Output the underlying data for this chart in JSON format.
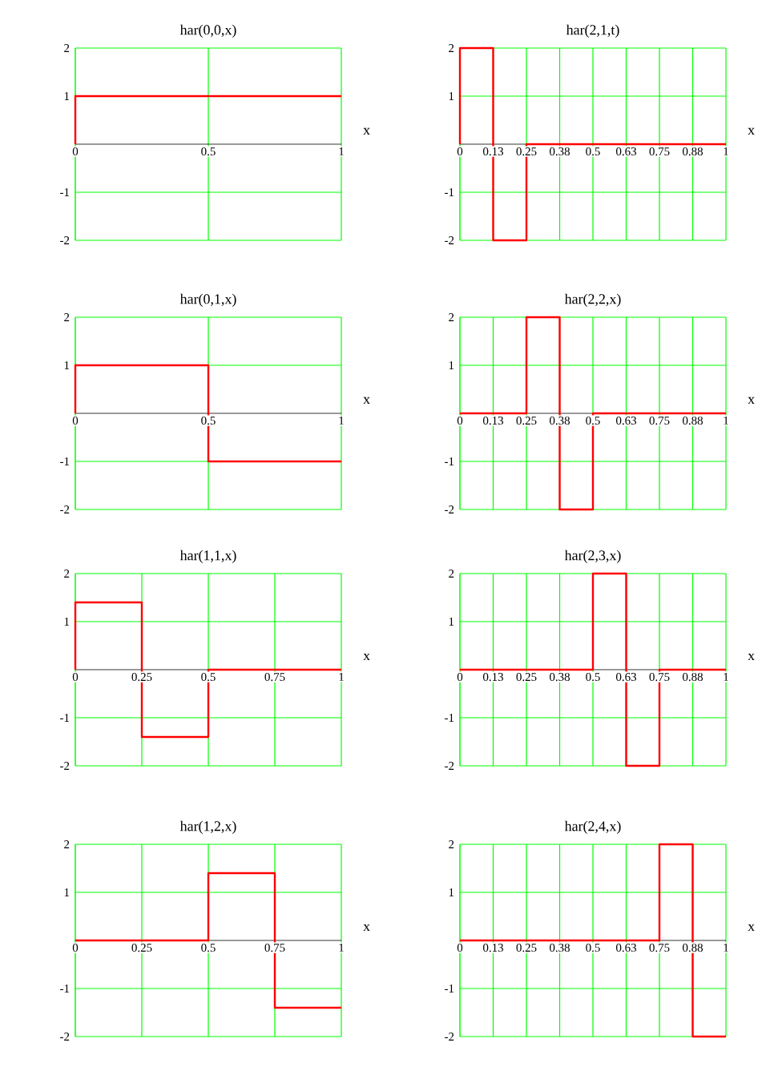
{
  "chart_data": [
    {
      "type": "step",
      "title": "har(0,0,x)",
      "xlabel": "x",
      "x": [
        0,
        0,
        1
      ],
      "values": [
        0,
        1,
        1
      ],
      "color": "#ff0000",
      "xlim": [
        0,
        1
      ],
      "ylim": [
        -2,
        2
      ],
      "xticks": [
        0,
        0.5,
        1
      ],
      "yticks": [
        -2,
        -1,
        1,
        2
      ],
      "grid": true
    },
    {
      "type": "step",
      "title": "har(2,1,t)",
      "xlabel": "x",
      "x": [
        0,
        0,
        0.125,
        0.25,
        1
      ],
      "values": [
        0,
        2,
        -2,
        0,
        0
      ],
      "color": "#ff0000",
      "xlim": [
        0,
        1
      ],
      "ylim": [
        -2,
        2
      ],
      "xticks": [
        0,
        {
          "value": 0.125,
          "label": "0.13"
        },
        0.25,
        {
          "value": 0.375,
          "label": "0.38"
        },
        0.5,
        {
          "value": 0.625,
          "label": "0.63"
        },
        0.75,
        {
          "value": 0.875,
          "label": "0.88"
        },
        1
      ],
      "yticks": [
        -2,
        -1,
        1,
        2
      ],
      "grid": true
    },
    {
      "type": "step",
      "title": "har(0,1,x)",
      "xlabel": "x",
      "x": [
        0,
        0,
        0.5,
        1
      ],
      "values": [
        0,
        1,
        -1,
        -1
      ],
      "color": "#ff0000",
      "xlim": [
        0,
        1
      ],
      "ylim": [
        -2,
        2
      ],
      "xticks": [
        0,
        0.5,
        1
      ],
      "yticks": [
        -2,
        -1,
        1,
        2
      ],
      "grid": true
    },
    {
      "type": "step",
      "title": "har(2,2,x)",
      "xlabel": "x",
      "x": [
        0,
        0.25,
        0.375,
        0.5,
        1
      ],
      "values": [
        0,
        2,
        -2,
        0,
        0
      ],
      "color": "#ff0000",
      "xlim": [
        0,
        1
      ],
      "ylim": [
        -2,
        2
      ],
      "xticks": [
        0,
        {
          "value": 0.125,
          "label": "0.13"
        },
        0.25,
        {
          "value": 0.375,
          "label": "0.38"
        },
        0.5,
        {
          "value": 0.625,
          "label": "0.63"
        },
        0.75,
        {
          "value": 0.875,
          "label": "0.88"
        },
        1
      ],
      "yticks": [
        -2,
        -1,
        1,
        2
      ],
      "grid": true
    },
    {
      "type": "step",
      "title": "har(1,1,x)",
      "xlabel": "x",
      "x": [
        0,
        0,
        0.25,
        0.5,
        1
      ],
      "values": [
        0,
        1.4,
        -1.4,
        0,
        0
      ],
      "color": "#ff0000",
      "xlim": [
        0,
        1
      ],
      "ylim": [
        -2,
        2
      ],
      "xticks": [
        0,
        0.25,
        0.5,
        0.75,
        1
      ],
      "yticks": [
        -2,
        -1,
        1,
        2
      ],
      "grid": true
    },
    {
      "type": "step",
      "title": "har(2,3,x)",
      "xlabel": "x",
      "x": [
        0,
        0.5,
        0.625,
        0.75,
        1
      ],
      "values": [
        0,
        2,
        -2,
        0,
        0
      ],
      "color": "#ff0000",
      "xlim": [
        0,
        1
      ],
      "ylim": [
        -2,
        2
      ],
      "xticks": [
        0,
        {
          "value": 0.125,
          "label": "0.13"
        },
        0.25,
        {
          "value": 0.375,
          "label": "0.38"
        },
        0.5,
        {
          "value": 0.625,
          "label": "0.63"
        },
        0.75,
        {
          "value": 0.875,
          "label": "0.88"
        },
        1
      ],
      "yticks": [
        -2,
        -1,
        1,
        2
      ],
      "grid": true
    },
    {
      "type": "step",
      "title": "har(1,2,x)",
      "xlabel": "x",
      "x": [
        0,
        0.5,
        0.75,
        1
      ],
      "values": [
        0,
        1.4,
        -1.4,
        -1.4
      ],
      "color": "#ff0000",
      "xlim": [
        0,
        1
      ],
      "ylim": [
        -2,
        2
      ],
      "xticks": [
        0,
        0.25,
        0.5,
        0.75,
        1
      ],
      "yticks": [
        -2,
        -1,
        1,
        2
      ],
      "grid": true
    },
    {
      "type": "step",
      "title": "har(2,4,x)",
      "xlabel": "x",
      "x": [
        0,
        0.75,
        0.875,
        1
      ],
      "values": [
        0,
        2,
        -2,
        -2
      ],
      "color": "#ff0000",
      "xlim": [
        0,
        1
      ],
      "ylim": [
        -2,
        2
      ],
      "xticks": [
        0,
        {
          "value": 0.125,
          "label": "0.13"
        },
        0.25,
        {
          "value": 0.375,
          "label": "0.38"
        },
        0.5,
        {
          "value": 0.625,
          "label": "0.63"
        },
        0.75,
        {
          "value": 0.875,
          "label": "0.88"
        },
        1
      ],
      "yticks": [
        -2,
        -1,
        1,
        2
      ],
      "grid": true
    }
  ]
}
